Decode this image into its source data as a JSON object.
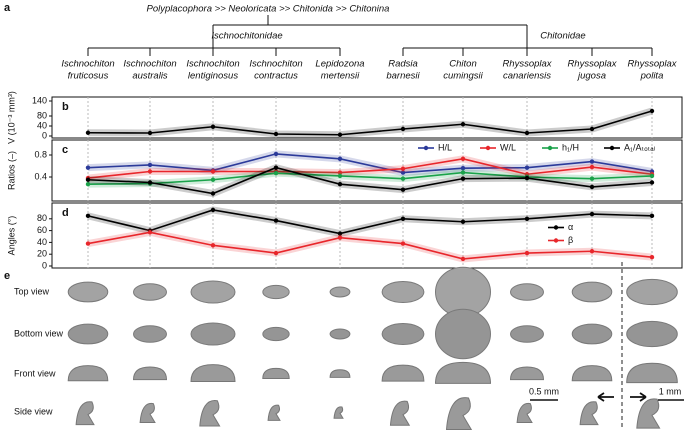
{
  "tree": {
    "label": "a",
    "root": "Polyplacophora >> Neoloricata >> Chitonida >> Chitonina",
    "families": [
      {
        "name": "Ischnochitonidae",
        "species": [
          [
            "Ischnochiton",
            "fruticosus"
          ],
          [
            "Ischnochiton",
            "australis"
          ],
          [
            "Ischnochiton",
            "lentiginosus"
          ],
          [
            "Ischnochiton",
            "contractus"
          ],
          [
            "Lepidozona",
            "mertensii"
          ]
        ]
      },
      {
        "name": "Chitonidae",
        "species": [
          [
            "Radsia",
            "barnesii"
          ],
          [
            "Chiton",
            "cumingsii"
          ],
          [
            "Rhyssoplax",
            "canariensis"
          ],
          [
            "Rhyssoplax",
            "jugosa"
          ],
          [
            "Rhyssoplax",
            "polita"
          ]
        ]
      }
    ]
  },
  "chart_data": [
    {
      "type": "line",
      "label": "b",
      "y_label": "V (10⁻³ mm³)",
      "ylim": [
        0,
        140
      ],
      "yticks": [
        0,
        40,
        80,
        140
      ],
      "series": [
        {
          "color": "#000000",
          "values": [
            13,
            12,
            37,
            8,
            5,
            28,
            47,
            12,
            28,
            100
          ]
        }
      ]
    },
    {
      "type": "line",
      "label": "c",
      "y_label": "Ratios (–)",
      "ylim": [
        0,
        1.0
      ],
      "yticks": [
        0.4,
        0.8
      ],
      "legend": "top",
      "series": [
        {
          "name": "H/L",
          "color": "#2b3a9a",
          "values": [
            0.57,
            0.62,
            0.52,
            0.82,
            0.73,
            0.48,
            0.56,
            0.57,
            0.68,
            0.5
          ]
        },
        {
          "name": "W/L",
          "color": "#e8262b",
          "values": [
            0.38,
            0.5,
            0.5,
            0.5,
            0.48,
            0.55,
            0.73,
            0.45,
            0.58,
            0.45
          ]
        },
        {
          "name": "h₁/H",
          "color": "#1aa24a",
          "values": [
            0.27,
            0.28,
            0.35,
            0.47,
            0.42,
            0.37,
            0.48,
            0.4,
            0.37,
            0.42
          ]
        },
        {
          "name": "A₁/Aₜₒₜₐₗ",
          "color": "#000000",
          "values": [
            0.35,
            0.3,
            0.1,
            0.57,
            0.27,
            0.17,
            0.37,
            0.38,
            0.22,
            0.3
          ]
        }
      ]
    },
    {
      "type": "line",
      "label": "d",
      "y_label": "Angles (°)",
      "ylim": [
        0,
        100
      ],
      "yticks": [
        0,
        20,
        40,
        60,
        80
      ],
      "legend": "right",
      "series": [
        {
          "name": "α",
          "color": "#000000",
          "values": [
            85,
            60,
            95,
            77,
            55,
            80,
            75,
            80,
            88,
            85
          ]
        },
        {
          "name": "β",
          "color": "#e8262b",
          "values": [
            38,
            57,
            35,
            22,
            48,
            38,
            12,
            22,
            25,
            15
          ]
        }
      ]
    }
  ],
  "panel_e": {
    "label": "e",
    "rows": [
      "Top view",
      "Bottom view",
      "Front view",
      "Side view"
    ],
    "scale_bars": [
      "0.5 mm",
      "1 mm"
    ]
  }
}
